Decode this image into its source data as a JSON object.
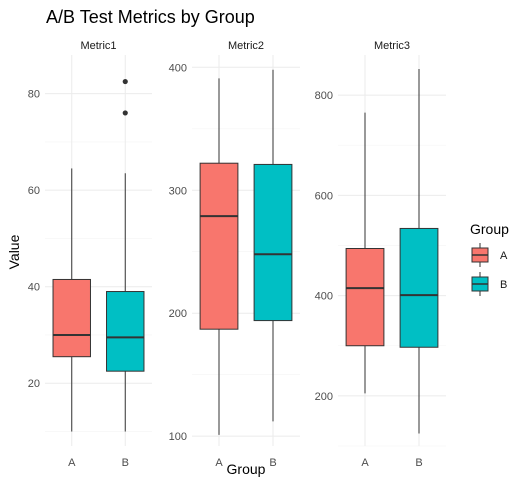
{
  "chart_data": {
    "type": "boxplot",
    "title": "A/B Test Metrics by Group",
    "xlabel": "Group",
    "ylabel": "Value",
    "categories": [
      "A",
      "B"
    ],
    "legend": {
      "title": "Group",
      "position": "right",
      "entries": [
        {
          "label": "A",
          "color": "#F8766D"
        },
        {
          "label": "B",
          "color": "#00BFC4"
        }
      ]
    },
    "grid": true,
    "facets": [
      {
        "name": "Metric1",
        "ylim": [
          7,
          88
        ],
        "yticks": [
          20,
          40,
          60,
          80
        ],
        "boxes": [
          {
            "group": "A",
            "min": 10,
            "q1": 25.5,
            "median": 30,
            "q3": 41.5,
            "max": 64.5,
            "outliers": []
          },
          {
            "group": "B",
            "min": 10,
            "q1": 22.5,
            "median": 29.5,
            "q3": 39,
            "max": 63.5,
            "outliers": [
              76,
              82.5
            ]
          }
        ]
      },
      {
        "name": "Metric2",
        "ylim": [
          92,
          410
        ],
        "yticks": [
          100,
          200,
          300,
          400
        ],
        "boxes": [
          {
            "group": "A",
            "min": 101,
            "q1": 187,
            "median": 279,
            "q3": 322,
            "max": 391,
            "outliers": []
          },
          {
            "group": "B",
            "min": 112,
            "q1": 194,
            "median": 248,
            "q3": 321,
            "max": 398,
            "outliers": []
          }
        ]
      },
      {
        "name": "Metric3",
        "ylim": [
          100,
          880
        ],
        "yticks": [
          200,
          400,
          600,
          800
        ],
        "boxes": [
          {
            "group": "A",
            "min": 205,
            "q1": 300,
            "median": 415,
            "q3": 494,
            "max": 765,
            "outliers": []
          },
          {
            "group": "B",
            "min": 125,
            "q1": 297,
            "median": 401,
            "q3": 534,
            "max": 852,
            "outliers": []
          }
        ]
      }
    ]
  }
}
